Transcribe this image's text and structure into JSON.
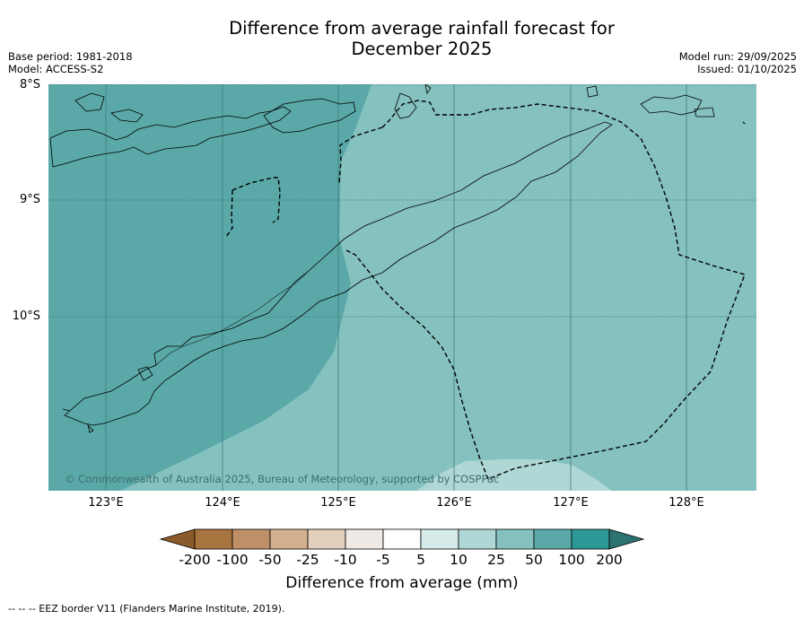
{
  "title_line1": "Difference from average rainfall forecast for",
  "title_line2": "December 2025",
  "base_period": "Base period: 1981-2018",
  "model": "Model: ACCESS-S2",
  "model_run": "Model run: 29/09/2025",
  "issued": "Issued: 01/10/2025",
  "lat_labels": [
    "8°S",
    "9°S",
    "10°S"
  ],
  "lon_labels": [
    "123°E",
    "124°E",
    "125°E",
    "126°E",
    "127°E",
    "128°E"
  ],
  "copyright": "© Commonwealth of Australia 2025, Bureau of Meteorology, supported by COSPPac",
  "colorbar": {
    "label": "Difference from average (mm)",
    "ticks": [
      "-200",
      "-100",
      "-50",
      "-25",
      "-10",
      "-5",
      "5",
      "10",
      "25",
      "50",
      "100",
      "200"
    ],
    "colors": [
      "#8b5a2b",
      "#a8743f",
      "#bf9068",
      "#d3b08f",
      "#e3cfbb",
      "#efeae5",
      "#ffffff",
      "#d6ebe9",
      "#aed7d5",
      "#85c1bf",
      "#5aa9a8",
      "#2e9896",
      "#2a7372"
    ]
  },
  "map_colors": {
    "zone_100": "#5aa9a8",
    "zone_50": "#85c1bf",
    "zone_25": "#aed7d5"
  },
  "footnote": "--  --  -- EEZ border V11 (Flanders Marine Institute, 2019)."
}
